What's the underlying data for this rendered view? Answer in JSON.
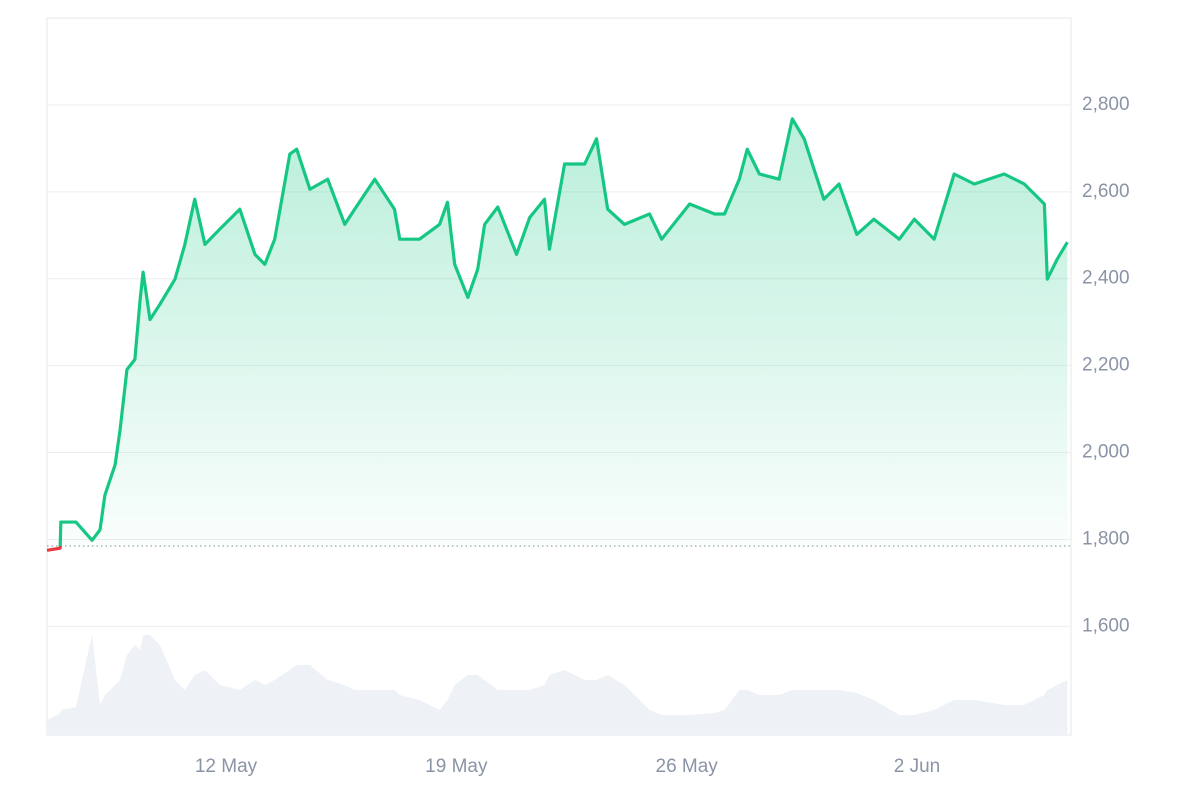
{
  "chart_data": {
    "type": "area-line",
    "x": [
      6.56,
      6.96,
      6.98,
      7.44,
      7.93,
      8.17,
      8.32,
      8.63,
      8.78,
      8.99,
      9.23,
      9.39,
      9.48,
      9.69,
      9.99,
      10.45,
      10.75,
      11.05,
      11.36,
      11.81,
      12.42,
      12.88,
      13.18,
      13.48,
      13.94,
      14.15,
      14.55,
      15.09,
      15.61,
      15.91,
      16.52,
      17.12,
      17.28,
      17.88,
      18.49,
      18.73,
      18.95,
      19.35,
      19.65,
      19.86,
      20.26,
      20.83,
      21.23,
      21.68,
      21.83,
      22.29,
      22.9,
      23.26,
      23.6,
      24.11,
      24.87,
      25.24,
      26.09,
      26.85,
      27.15,
      27.6,
      27.84,
      28.21,
      28.81,
      29.21,
      29.57,
      29.87,
      30.17,
      30.63,
      31.17,
      31.69,
      32.46,
      32.92,
      33.52,
      34.13,
      34.74,
      35.65,
      36.26,
      36.87,
      36.96,
      37.26,
      37.57
    ],
    "values": [
      1775,
      1780,
      1840,
      1840,
      1798,
      1822,
      1902,
      1972,
      2052,
      2191,
      2214,
      2352,
      2415,
      2306,
      2341,
      2399,
      2479,
      2583,
      2479,
      2514,
      2560,
      2456,
      2433,
      2491,
      2687,
      2698,
      2606,
      2629,
      2525,
      2560,
      2629,
      2560,
      2491,
      2491,
      2525,
      2576,
      2433,
      2357,
      2422,
      2525,
      2565,
      2456,
      2541,
      2583,
      2468,
      2664,
      2664,
      2722,
      2560,
      2525,
      2549,
      2491,
      2572,
      2549,
      2549,
      2629,
      2698,
      2641,
      2629,
      2768,
      2722,
      2652,
      2583,
      2618,
      2502,
      2537,
      2491,
      2537,
      2491,
      2641,
      2618,
      2641,
      2618,
      2572,
      2399,
      2445,
      2484
    ],
    "volume": [
      15,
      22,
      25,
      28,
      100,
      30,
      40,
      50,
      55,
      80,
      90,
      85,
      100,
      100,
      90,
      55,
      45,
      60,
      65,
      50,
      45,
      55,
      50,
      55,
      65,
      70,
      70,
      55,
      50,
      45,
      45,
      45,
      40,
      35,
      25,
      35,
      50,
      60,
      60,
      55,
      45,
      45,
      45,
      50,
      60,
      65,
      55,
      55,
      60,
      50,
      25,
      20,
      20,
      22,
      25,
      45,
      45,
      40,
      40,
      45,
      45,
      45,
      45,
      45,
      42,
      35,
      20,
      20,
      25,
      35,
      35,
      30,
      30,
      40,
      45,
      50,
      55
    ],
    "vlim": [
      0,
      100
    ],
    "reference": 1785,
    "color": "#16c784",
    "down_color": "#ea3943",
    "volume_color": "#eef1f5",
    "xlim": [
      6.56,
      37.68
    ],
    "xticks": [
      {
        "value": 12,
        "label": "12 May"
      },
      {
        "value": 19,
        "label": "19 May"
      },
      {
        "value": 26,
        "label": "26 May"
      },
      {
        "value": 33,
        "label": "2 Jun"
      }
    ],
    "ylim": [
      1350,
      3000
    ],
    "yticks": [
      {
        "value": 1600,
        "label": "1,600"
      },
      {
        "value": 1800,
        "label": "1,800"
      },
      {
        "value": 2000,
        "label": "2,000"
      },
      {
        "value": 2200,
        "label": "2,200"
      },
      {
        "value": 2400,
        "label": "2,400"
      },
      {
        "value": 2600,
        "label": "2,600"
      },
      {
        "value": 2800,
        "label": "2,800"
      }
    ],
    "grid": true
  }
}
